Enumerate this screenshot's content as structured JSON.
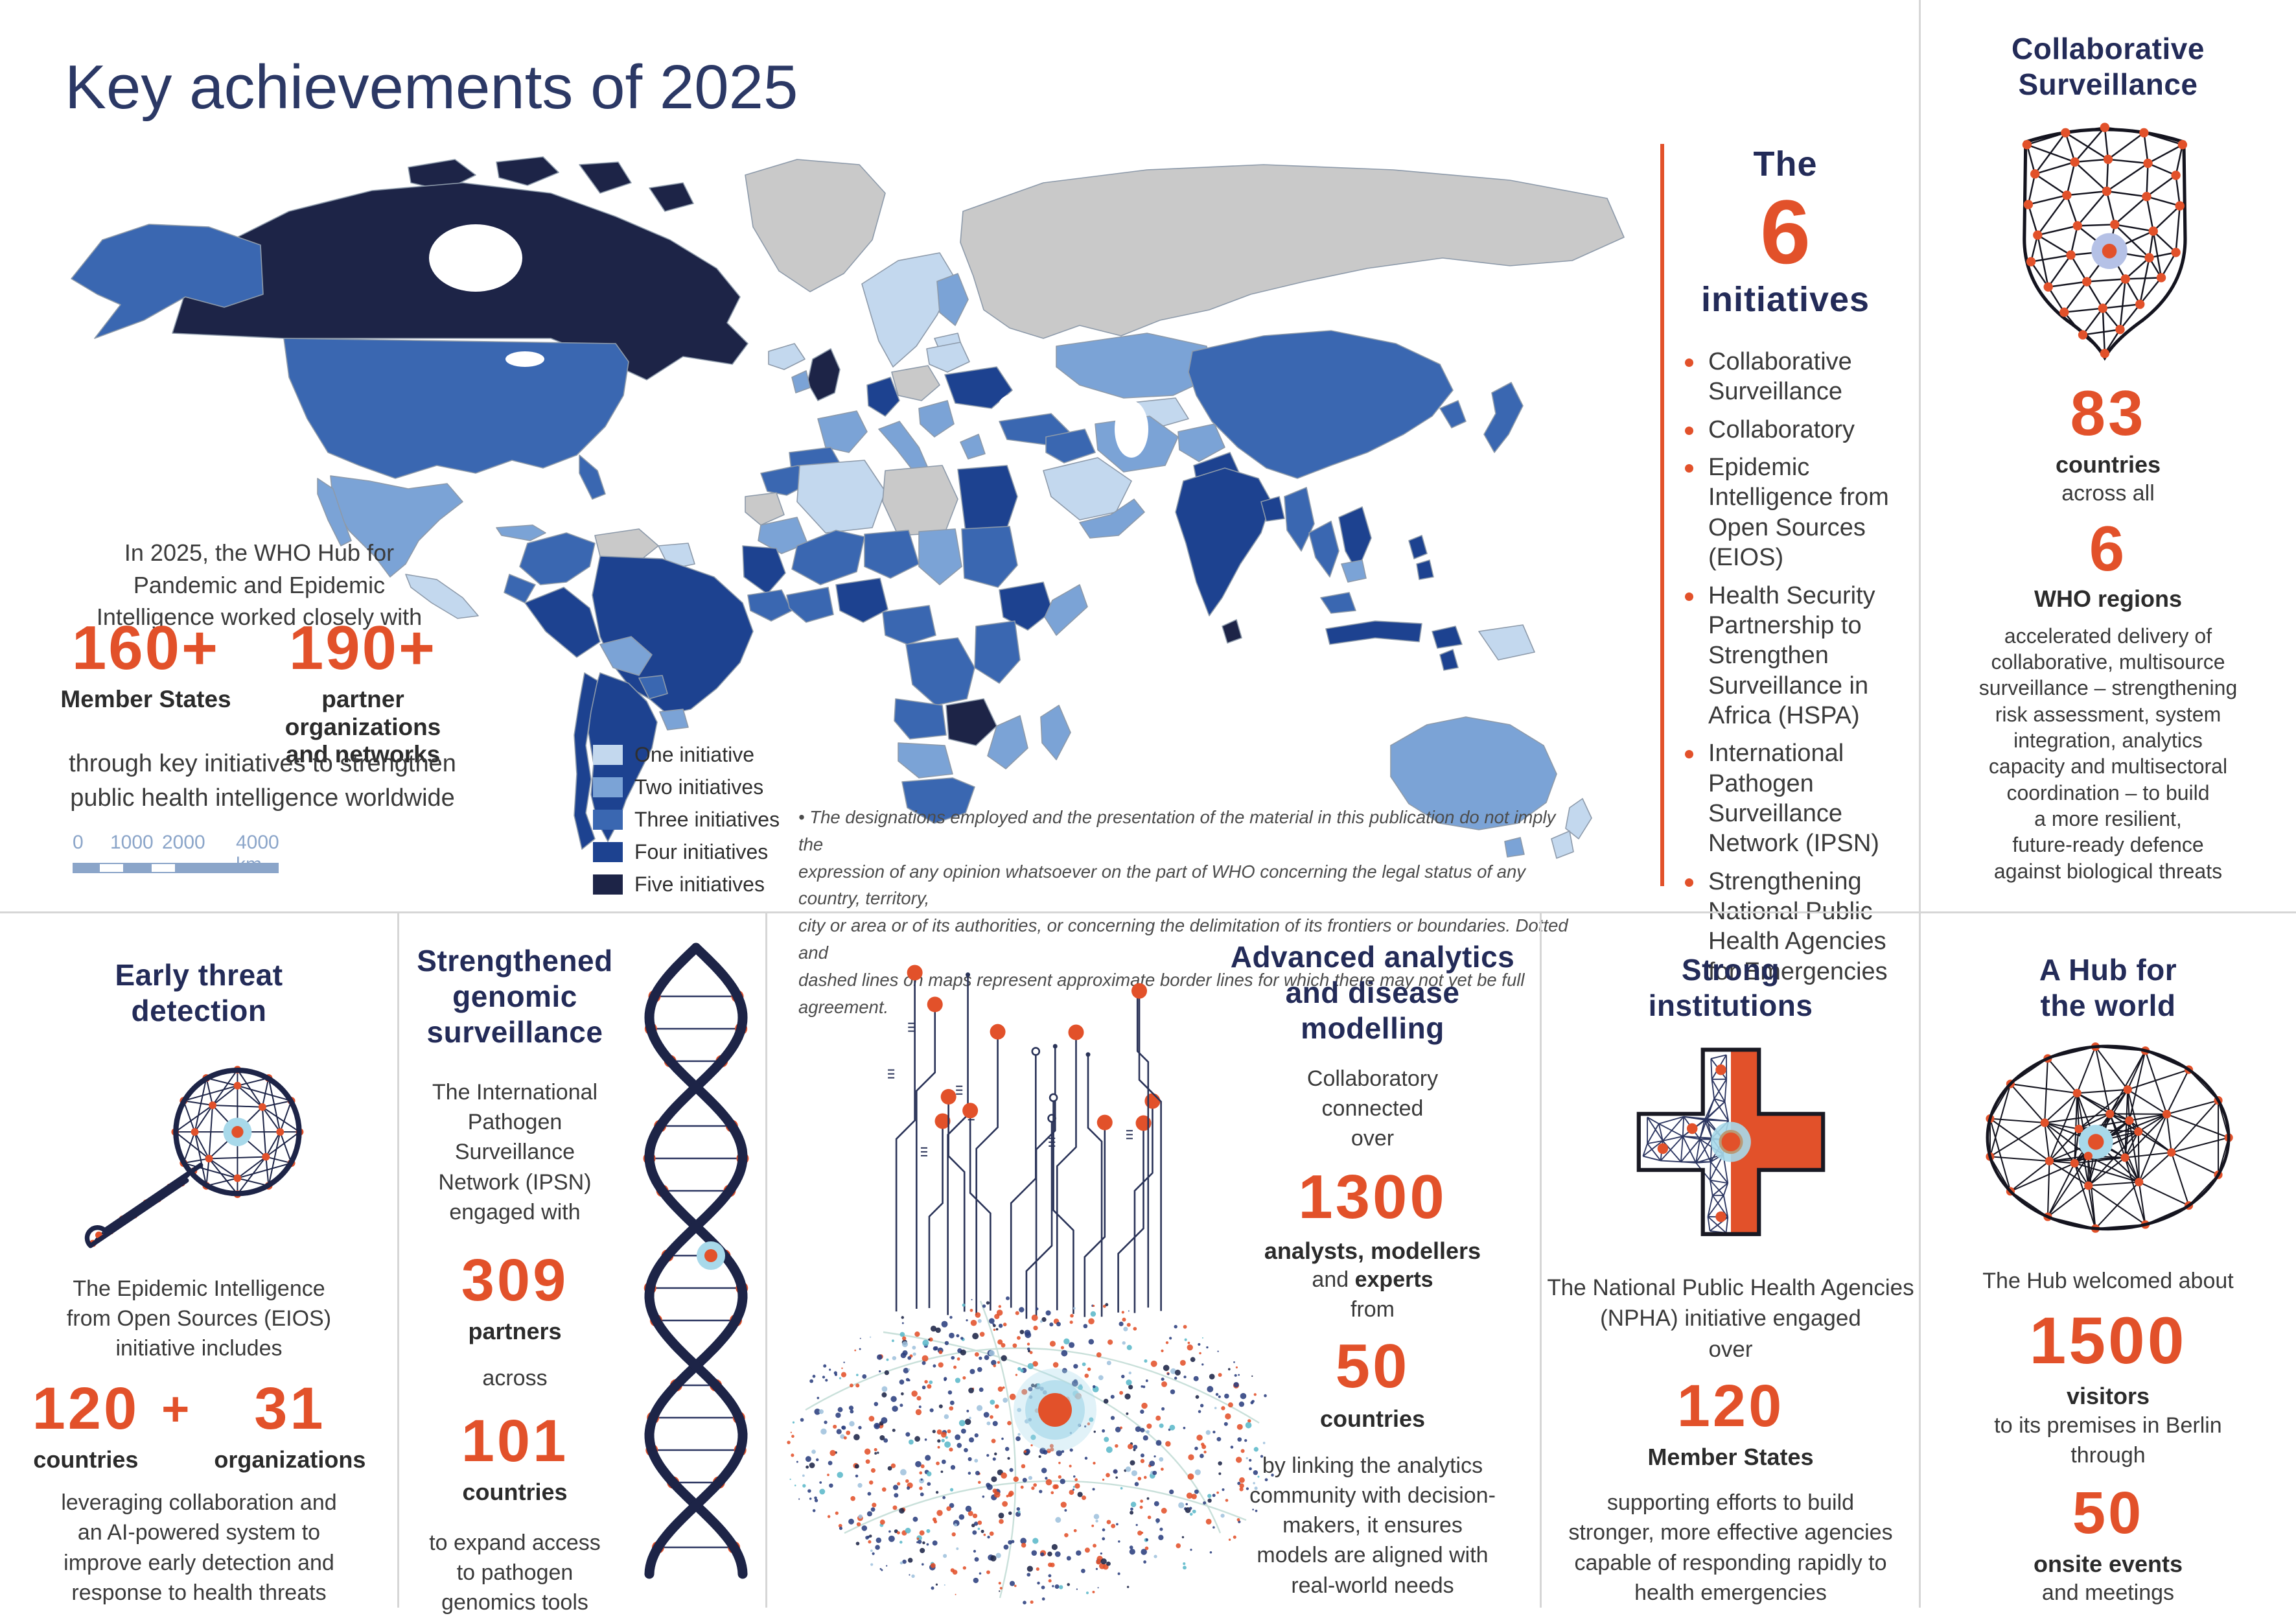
{
  "header": {
    "title": "Key achievements of 2025"
  },
  "colors": {
    "accent": "#e2512a",
    "navy": "#232b58",
    "legend_one": "#c3d8ee",
    "legend_two": "#7ba3d6",
    "legend_three": "#3a67b1",
    "legend_four": "#1d4290",
    "legend_five": "#1d2447",
    "map_no_data": "#c9c9c9"
  },
  "map": {
    "intro": "In 2025, the WHO Hub for\nPandemic and Epidemic\nIntelligence worked closely with",
    "stat1_value": "160+",
    "stat1_label": "Member States",
    "stat2_value": "190+",
    "stat2_label": "partner organizations\nand networks",
    "outro": "through key initiatives to strengthen\npublic health intelligence worldwide",
    "legend_items": [
      {
        "label": "One initiative",
        "color": "#c3d8ee"
      },
      {
        "label": "Two initiatives",
        "color": "#7ba3d6"
      },
      {
        "label": "Three initiatives",
        "color": "#3a67b1"
      },
      {
        "label": "Four initiatives",
        "color": "#1d4290"
      },
      {
        "label": "Five initiatives",
        "color": "#1d2447"
      }
    ],
    "scale_ticks": [
      "0",
      "1000",
      "2000",
      "4000 km"
    ],
    "disclaimer": "• The designations employed and the presentation of the material in this publication do not imply the\nexpression of any opinion whatsoever on the part of WHO concerning the legal status of any country, territory,\ncity or area or of its authorities, or concerning the delimitation of its frontiers or boundaries. Dotted and\ndashed lines on maps represent approximate border lines for which there may not yet be full agreement."
  },
  "initiatives": {
    "the": "The",
    "number": "6",
    "word": "initiatives",
    "items": [
      "Collaborative Surveillance",
      "Collaboratory",
      "Epidemic Intelligence from Open Sources (EIOS)",
      "Health Security Partnership to Strengthen Surveillance in Africa (HSPA)",
      "International Pathogen Surveillance Network (IPSN)",
      "Strengthening National Public Health Agencies for Emergencies"
    ]
  },
  "collab_panel": {
    "title": "Collaborative\nSurveillance",
    "stat1": "83",
    "stat1_label": "countries",
    "mid": "across all",
    "stat2": "6",
    "stat2_label": "WHO regions",
    "body": "accelerated delivery of\ncollaborative, multisource\nsurveillance – strengthening\nrisk assessment, system\nintegration, analytics\ncapacity and multisectoral\ncoordination – to build\na more resilient,\nfuture-ready defence\nagainst biological threats"
  },
  "early_panel": {
    "title": "Early threat\ndetection",
    "intro": "The Epidemic Intelligence\nfrom Open Sources (EIOS)\ninitiative includes",
    "stat1": "120",
    "plus": "+",
    "stat2": "31",
    "stat1_label": "countries",
    "stat2_label": "organizations",
    "body": "leveraging collaboration and\nan AI-powered system to\nimprove early detection and\nresponse to health threats"
  },
  "genomic_panel": {
    "title": "Strengthened\ngenomic\nsurveillance",
    "intro": "The International\nPathogen\nSurveillance\nNetwork (IPSN)\nengaged with",
    "stat1": "309",
    "stat1_label": "partners",
    "mid": "across",
    "stat2": "101",
    "stat2_label": "countries",
    "body": "to expand access\nto pathogen\ngenomics tools"
  },
  "analytics_panel": {
    "title": "Advanced analytics\nand disease\nmodelling",
    "intro": "Collaboratory\nconnected\nover",
    "stat1": "1300",
    "stat1_label_bold": "analysts, modellers",
    "and_word": "and ",
    "experts_word": "experts",
    "from_word": "from",
    "stat2": "50",
    "stat2_label": "countries",
    "body": "by linking the analytics\ncommunity with decision-\nmakers, it ensures\nmodels are aligned with\nreal-world needs"
  },
  "institutions_panel": {
    "title": "Strong\ninstitutions",
    "intro": "The National Public Health Agencies\n(NPHA) initiative engaged\nover",
    "stat1": "120",
    "stat1_label": "Member States",
    "body": "supporting efforts to build\nstronger, more effective agencies\ncapable of responding rapidly to\nhealth emergencies"
  },
  "hub_panel": {
    "title": "A Hub for\nthe world",
    "intro": "The Hub welcomed about",
    "stat1": "1500",
    "stat1_label": "visitors",
    "mid": "to its premises in Berlin\nthrough",
    "stat2": "50",
    "stat2_label": "onsite events",
    "tail": "and meetings"
  }
}
